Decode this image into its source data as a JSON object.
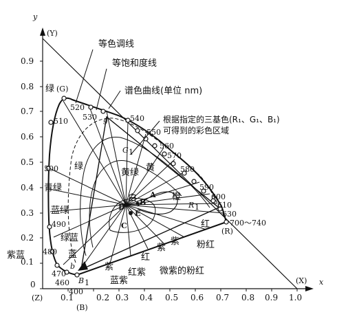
{
  "axes": {
    "y_label": "y",
    "x_label": "x",
    "Y_label": "(Y)",
    "X_label": "(X)",
    "Z_label": "(Z)",
    "B_label": "(B)",
    "G_label": "(G)",
    "R_label": "(R)",
    "x_ticks": [
      "0.1",
      "0.2",
      "0.3",
      "0.4",
      "0.5",
      "0.6",
      "0.7",
      "0.8",
      "0.9",
      "1.0"
    ],
    "y_ticks": [
      "0",
      "0.1",
      "0.2",
      "0.3",
      "0.4",
      "0.5",
      "0.6",
      "0.7",
      "0.8",
      "0.9"
    ]
  },
  "wavelengths": {
    "w400": "400",
    "w460": "460",
    "w470": "470",
    "w480": "480",
    "w490": "490",
    "w500": "500",
    "w510": "510",
    "w520": "520",
    "w530": "530",
    "w540": "540",
    "w550": "550",
    "w560": "560",
    "w570": "570",
    "w580": "580",
    "w590": "590",
    "w600": "600",
    "w610": "610",
    "w630": "630",
    "w700": "700～740"
  },
  "callouts": {
    "iso_hue": "等色调线",
    "iso_sat": "等饱和度线",
    "locus": "谱色曲线(单位 nm)",
    "gamut_1": "根据指定的三基色(R₁、G₁、B₁)",
    "gamut_2": "可得到的彩色区域"
  },
  "regions": {
    "green": "绿",
    "green_G": "绿",
    "cyan_green": "青绿",
    "blue_green": "蓝绿",
    "green_blue": "绿蓝",
    "blue": "蓝",
    "purple_blue": "紫蓝",
    "blue_purple": "蓝紫",
    "purple": "紫",
    "red_purple": "红紫",
    "red": "红",
    "purple2": "紫",
    "purple3": "紫",
    "pink_red": "粉红",
    "mauve_pink": "微紫的粉红",
    "yellow_green": "黄绿",
    "yellow": "黄",
    "orange": "橙",
    "red2": "红",
    "white": "白"
  },
  "points": {
    "A": "A",
    "B": "B",
    "C": "C",
    "D": "D",
    "E": "E",
    "R1": "R",
    "R1_sub": "1",
    "G1": "G",
    "G1_sub": "1",
    "B1": "B",
    "B1_sub": "1",
    "b": "b",
    "g": "g"
  },
  "colors": {
    "ink": "#111111",
    "paper": "#ffffff"
  }
}
